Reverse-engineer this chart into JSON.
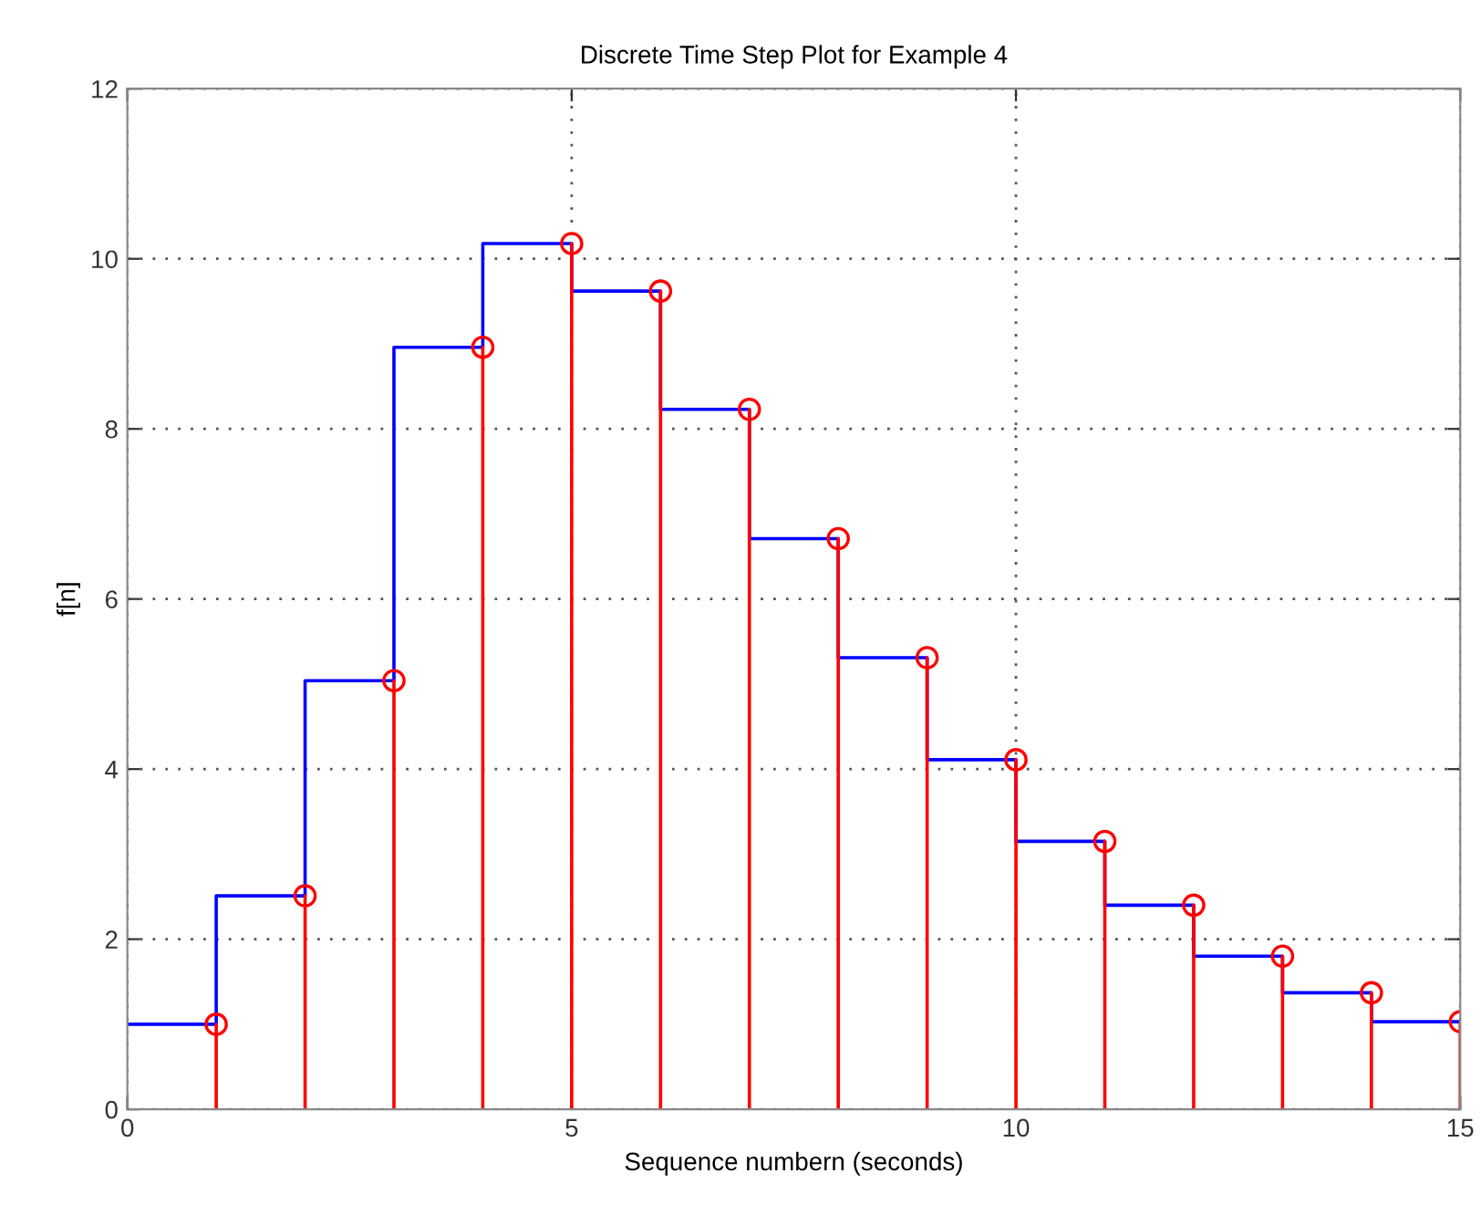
{
  "chart_data": {
    "type": "step",
    "title": "Discrete Time Step Plot for Example 4",
    "xlabel": "Sequence numbern (seconds)",
    "ylabel": "f[n]",
    "xlim": [
      0,
      15
    ],
    "xticks": [
      0,
      5,
      10,
      15
    ],
    "ylim": [
      0,
      12
    ],
    "yticks": [
      0,
      2,
      4,
      6,
      8,
      10,
      12
    ],
    "grid": true,
    "legend": false,
    "series": [
      {
        "color": "#0000ff",
        "x": [
          0,
          1,
          2,
          3,
          4,
          5,
          6,
          7,
          8,
          9,
          10,
          11,
          12,
          13,
          14,
          15
        ],
        "values": [
          1.0,
          1.0,
          2.51,
          5.04,
          8.96,
          10.18,
          9.62,
          8.23,
          6.71,
          5.31,
          4.11,
          3.15,
          2.4,
          1.8,
          1.37,
          1.03
        ],
        "marker": "none"
      },
      {
        "type": "lollipop",
        "color": "#ff0000",
        "x": [
          1,
          2,
          3,
          4,
          5,
          6,
          7,
          8,
          9,
          10,
          11,
          12,
          13,
          14,
          15
        ],
        "values": [
          1.0,
          2.51,
          5.04,
          8.96,
          10.18,
          9.62,
          8.23,
          6.71,
          5.31,
          4.11,
          3.15,
          2.4,
          1.8,
          1.37,
          1.03
        ],
        "marker": "circle"
      }
    ]
  }
}
